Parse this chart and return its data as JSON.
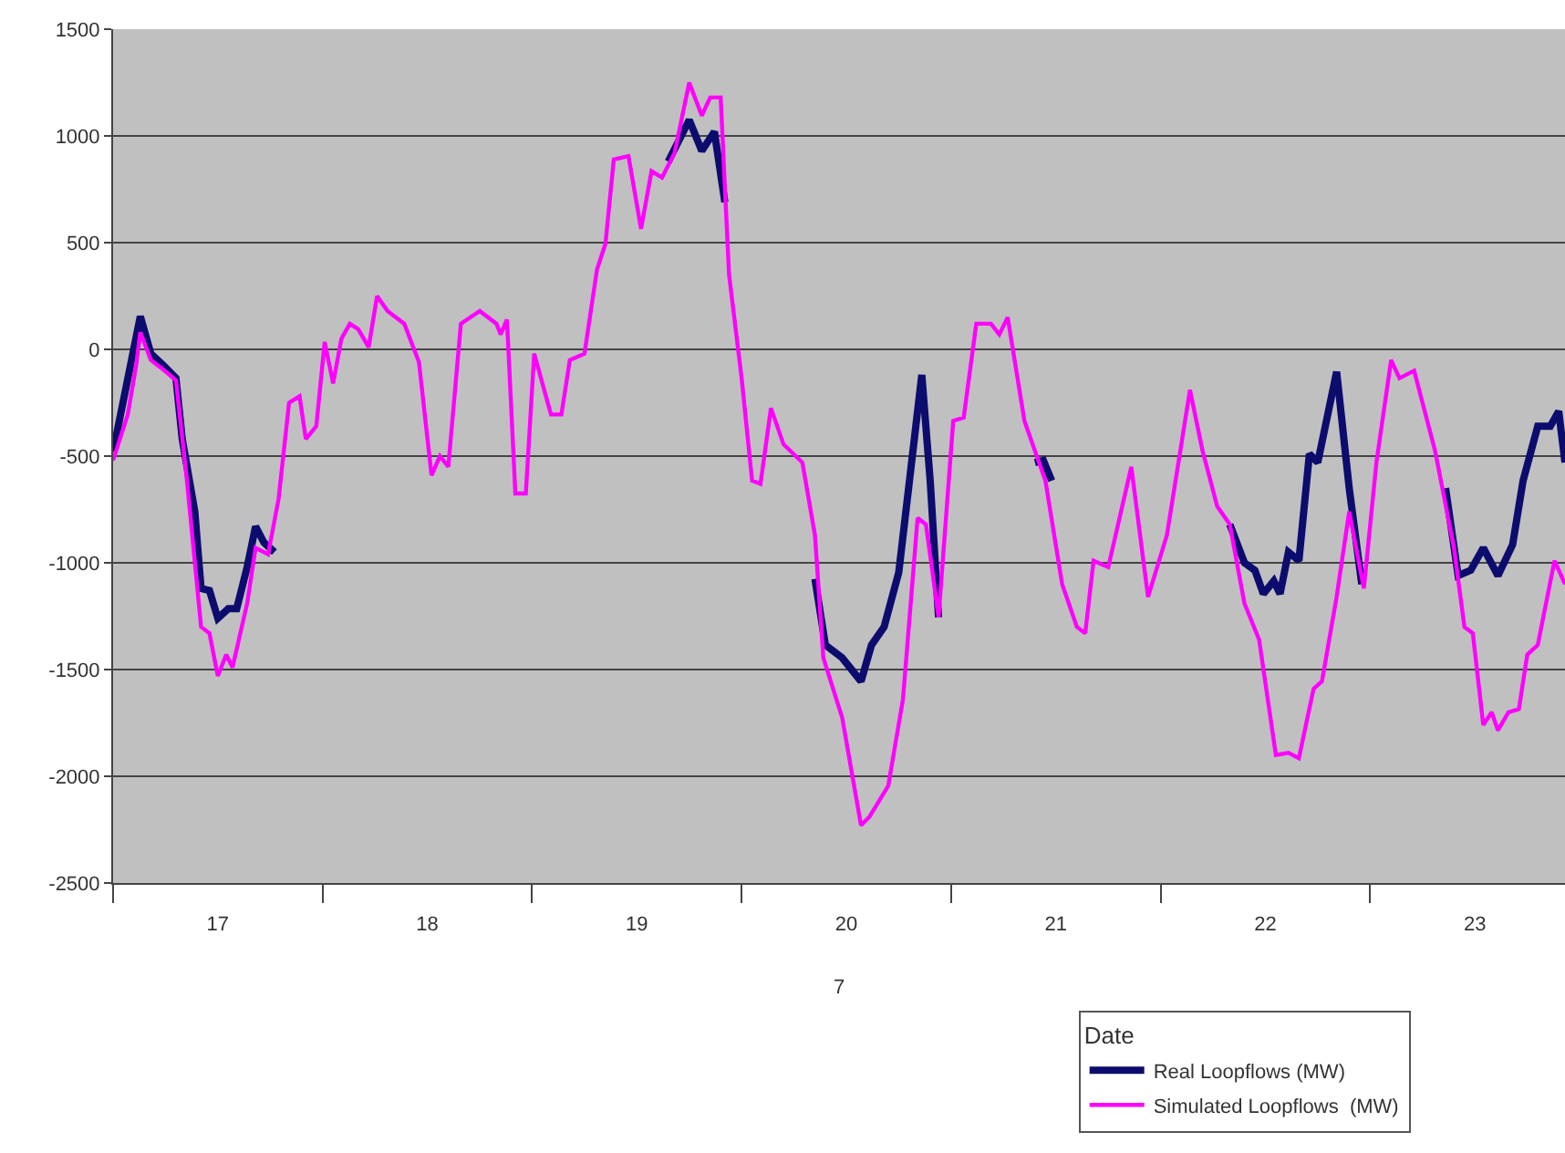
{
  "chart_data": {
    "type": "line",
    "xlabel": "7",
    "legend_title": "Date",
    "legend": "bottom right",
    "grid": "y",
    "marker": "none",
    "line_style": "solid",
    "xlim": [
      17,
      23.93
    ],
    "xticks": [
      {
        "value": 17,
        "label": null
      },
      {
        "value": 17.5,
        "label": "17"
      },
      {
        "value": 18,
        "label": null
      },
      {
        "value": 18.5,
        "label": "18"
      },
      {
        "value": 19,
        "label": null
      },
      {
        "value": 19.5,
        "label": "19"
      },
      {
        "value": 20,
        "label": null
      },
      {
        "value": 20.5,
        "label": "20"
      },
      {
        "value": 21,
        "label": null
      },
      {
        "value": 21.5,
        "label": "21"
      },
      {
        "value": 22,
        "label": null
      },
      {
        "value": 22.5,
        "label": "22"
      },
      {
        "value": 23,
        "label": null
      },
      {
        "value": 23.5,
        "label": "23"
      }
    ],
    "ylim": [
      -2500,
      1500
    ],
    "yticks": [
      -2500,
      -2000,
      -1500,
      -1000,
      -500,
      0,
      500,
      1000,
      1500
    ],
    "series": [
      {
        "name": "Real Loopflows (MW)",
        "color": "#0c0c6e",
        "x": [
          17.0,
          17.13,
          17.18,
          17.24,
          17.3,
          17.33,
          17.39,
          17.42,
          17.46,
          17.5,
          17.55,
          17.59,
          17.64,
          17.68,
          17.72,
          17.77,
          18.7,
          19.65,
          19.75,
          19.81,
          19.87,
          19.92,
          20.1,
          20.35,
          20.4,
          20.48,
          20.57,
          20.62,
          20.68,
          20.75,
          20.86,
          20.9,
          20.94,
          21.2,
          21.4,
          21.44,
          21.48,
          22.0,
          22.33,
          22.4,
          22.45,
          22.49,
          22.54,
          22.57,
          22.61,
          22.66,
          22.71,
          22.75,
          22.84,
          22.9,
          22.96,
          23.2,
          23.36,
          23.42,
          23.48,
          23.54,
          23.61,
          23.68,
          23.73,
          23.8,
          23.86,
          23.9,
          23.93
        ],
        "values": [
          -480,
          155,
          -20,
          -75,
          -135,
          -420,
          -760,
          -1120,
          -1130,
          -1260,
          -1215,
          -1215,
          -1020,
          -830,
          -905,
          -950,
          null,
          880,
          1075,
          930,
          1020,
          690,
          null,
          -1075,
          -1385,
          -1445,
          -1555,
          -1385,
          -1300,
          -1045,
          -120,
          -615,
          -1255,
          null,
          -530,
          -520,
          -615,
          null,
          -820,
          -1000,
          -1035,
          -1145,
          -1085,
          -1145,
          -950,
          -990,
          -490,
          -530,
          -105,
          -650,
          -1100,
          null,
          -650,
          -1060,
          -1035,
          -930,
          -1060,
          -915,
          -615,
          -360,
          -360,
          -290,
          -530
        ]
      },
      {
        "name": "Simulated Loopflows  (MW)",
        "color": "#ff00ff",
        "x": [
          17.0,
          17.07,
          17.11,
          17.13,
          17.18,
          17.24,
          17.3,
          17.35,
          17.42,
          17.46,
          17.5,
          17.54,
          17.57,
          17.64,
          17.68,
          17.74,
          17.79,
          17.84,
          17.89,
          17.92,
          17.97,
          18.01,
          18.05,
          18.09,
          18.13,
          18.17,
          18.22,
          18.26,
          18.31,
          18.39,
          18.46,
          18.52,
          18.56,
          18.6,
          18.66,
          18.75,
          18.83,
          18.85,
          18.88,
          18.92,
          18.97,
          19.01,
          19.09,
          19.14,
          19.18,
          19.25,
          19.31,
          19.35,
          19.39,
          19.46,
          19.52,
          19.57,
          19.62,
          19.68,
          19.75,
          19.81,
          19.85,
          19.9,
          19.94,
          20.0,
          20.05,
          20.09,
          20.14,
          20.2,
          20.29,
          20.35,
          20.39,
          20.48,
          20.57,
          20.61,
          20.7,
          20.77,
          20.84,
          20.88,
          20.94,
          21.01,
          21.06,
          21.12,
          21.19,
          21.23,
          21.27,
          21.35,
          21.45,
          21.53,
          21.6,
          21.64,
          21.68,
          21.75,
          21.86,
          21.94,
          22.03,
          22.14,
          22.2,
          22.27,
          22.33,
          22.4,
          22.47,
          22.55,
          22.61,
          22.66,
          22.73,
          22.77,
          22.84,
          22.9,
          22.97,
          23.03,
          23.1,
          23.14,
          23.21,
          23.31,
          23.4,
          23.45,
          23.49,
          23.54,
          23.58,
          23.61,
          23.66,
          23.71,
          23.75,
          23.8,
          23.88,
          23.93
        ],
        "values": [
          -520,
          -305,
          -75,
          80,
          -50,
          -95,
          -145,
          -590,
          -1300,
          -1330,
          -1530,
          -1430,
          -1490,
          -1190,
          -930,
          -960,
          -700,
          -250,
          -220,
          -420,
          -360,
          35,
          -160,
          50,
          120,
          95,
          10,
          250,
          180,
          120,
          -60,
          -590,
          -500,
          -550,
          120,
          180,
          120,
          70,
          140,
          -675,
          -675,
          -20,
          -305,
          -305,
          -50,
          -20,
          375,
          495,
          890,
          905,
          565,
          835,
          805,
          920,
          1250,
          1095,
          1180,
          1180,
          350,
          -135,
          -615,
          -630,
          -275,
          -445,
          -530,
          -870,
          -1445,
          -1725,
          -2230,
          -2190,
          -2045,
          -1640,
          -790,
          -820,
          -1255,
          -335,
          -320,
          120,
          120,
          70,
          150,
          -335,
          -615,
          -1100,
          -1300,
          -1330,
          -990,
          -1020,
          -550,
          -1160,
          -870,
          -190,
          -475,
          -735,
          -820,
          -1190,
          -1360,
          -1900,
          -1890,
          -1915,
          -1590,
          -1555,
          -1160,
          -760,
          -1120,
          -530,
          -50,
          -135,
          -100,
          -475,
          -930,
          -1300,
          -1330,
          -1760,
          -1700,
          -1785,
          -1700,
          -1685,
          -1430,
          -1385,
          -990,
          -1100
        ]
      }
    ]
  }
}
